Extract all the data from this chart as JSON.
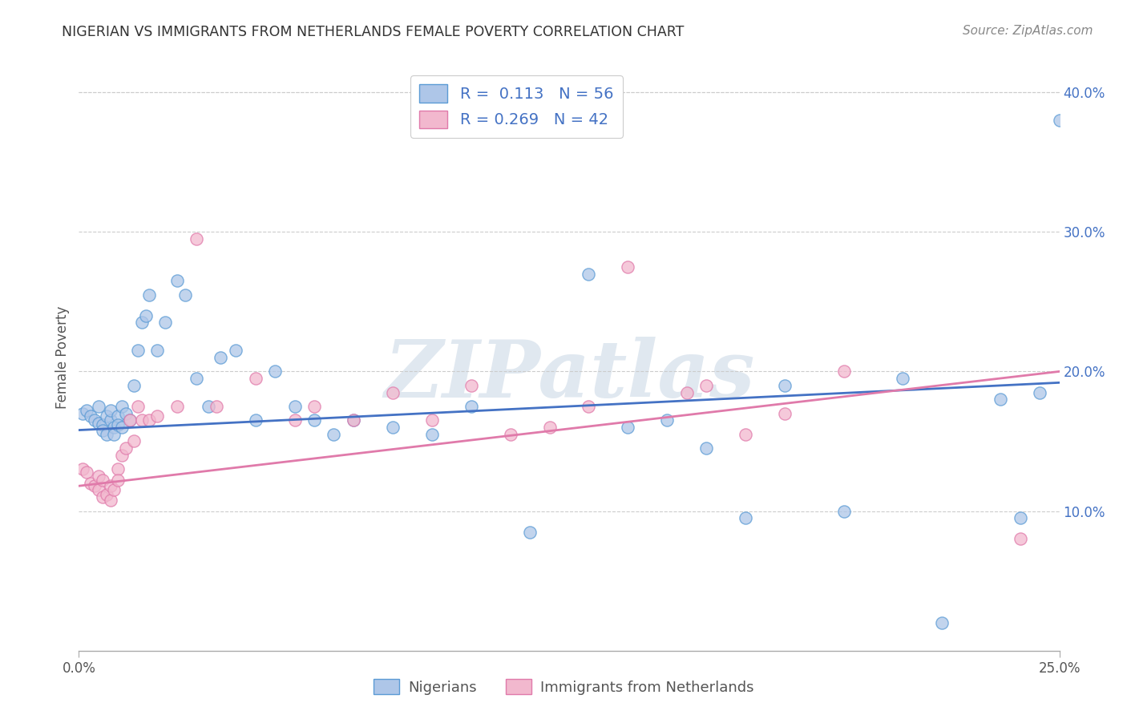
{
  "title": "NIGERIAN VS IMMIGRANTS FROM NETHERLANDS FEMALE POVERTY CORRELATION CHART",
  "source": "Source: ZipAtlas.com",
  "ylabel": "Female Poverty",
  "r_nigerian": 0.113,
  "n_nigerian": 56,
  "r_netherlands": 0.269,
  "n_netherlands": 42,
  "xlim": [
    0.0,
    0.25
  ],
  "ylim": [
    0.0,
    0.42
  ],
  "yticks": [
    0.1,
    0.2,
    0.3,
    0.4
  ],
  "ytick_labels": [
    "10.0%",
    "20.0%",
    "30.0%",
    "40.0%"
  ],
  "color_nigerian": "#aec6e8",
  "color_netherlands": "#f2b8ce",
  "edge_color_nigerian": "#5b9bd5",
  "edge_color_netherlands": "#e07aaa",
  "line_color_nigerian": "#4472c4",
  "line_color_netherlands": "#e07aaa",
  "background_color": "#ffffff",
  "watermark_text": "ZIPatlas",
  "legend_text_color": "#4472c4",
  "nigerian_x": [
    0.001,
    0.002,
    0.003,
    0.004,
    0.005,
    0.005,
    0.006,
    0.006,
    0.007,
    0.007,
    0.008,
    0.008,
    0.009,
    0.009,
    0.01,
    0.01,
    0.011,
    0.011,
    0.012,
    0.013,
    0.014,
    0.015,
    0.016,
    0.017,
    0.018,
    0.02,
    0.022,
    0.025,
    0.027,
    0.03,
    0.033,
    0.036,
    0.04,
    0.045,
    0.05,
    0.055,
    0.06,
    0.065,
    0.07,
    0.08,
    0.09,
    0.1,
    0.115,
    0.13,
    0.14,
    0.15,
    0.16,
    0.17,
    0.18,
    0.195,
    0.21,
    0.22,
    0.235,
    0.24,
    0.245,
    0.25
  ],
  "nigerian_y": [
    0.17,
    0.172,
    0.168,
    0.165,
    0.163,
    0.175,
    0.162,
    0.158,
    0.168,
    0.155,
    0.165,
    0.172,
    0.16,
    0.155,
    0.168,
    0.162,
    0.16,
    0.175,
    0.17,
    0.165,
    0.19,
    0.215,
    0.235,
    0.24,
    0.255,
    0.215,
    0.235,
    0.265,
    0.255,
    0.195,
    0.175,
    0.21,
    0.215,
    0.165,
    0.2,
    0.175,
    0.165,
    0.155,
    0.165,
    0.16,
    0.155,
    0.175,
    0.085,
    0.27,
    0.16,
    0.165,
    0.145,
    0.095,
    0.19,
    0.1,
    0.195,
    0.02,
    0.18,
    0.095,
    0.185,
    0.38
  ],
  "netherlands_x": [
    0.001,
    0.002,
    0.003,
    0.004,
    0.005,
    0.005,
    0.006,
    0.006,
    0.007,
    0.008,
    0.008,
    0.009,
    0.01,
    0.01,
    0.011,
    0.012,
    0.013,
    0.014,
    0.015,
    0.016,
    0.018,
    0.02,
    0.025,
    0.03,
    0.035,
    0.045,
    0.055,
    0.06,
    0.07,
    0.08,
    0.09,
    0.1,
    0.11,
    0.12,
    0.13,
    0.14,
    0.155,
    0.16,
    0.17,
    0.18,
    0.195,
    0.24
  ],
  "netherlands_y": [
    0.13,
    0.128,
    0.12,
    0.118,
    0.115,
    0.125,
    0.122,
    0.11,
    0.112,
    0.108,
    0.118,
    0.115,
    0.13,
    0.122,
    0.14,
    0.145,
    0.165,
    0.15,
    0.175,
    0.165,
    0.165,
    0.168,
    0.175,
    0.295,
    0.175,
    0.195,
    0.165,
    0.175,
    0.165,
    0.185,
    0.165,
    0.19,
    0.155,
    0.16,
    0.175,
    0.275,
    0.185,
    0.19,
    0.155,
    0.17,
    0.2,
    0.08
  ]
}
